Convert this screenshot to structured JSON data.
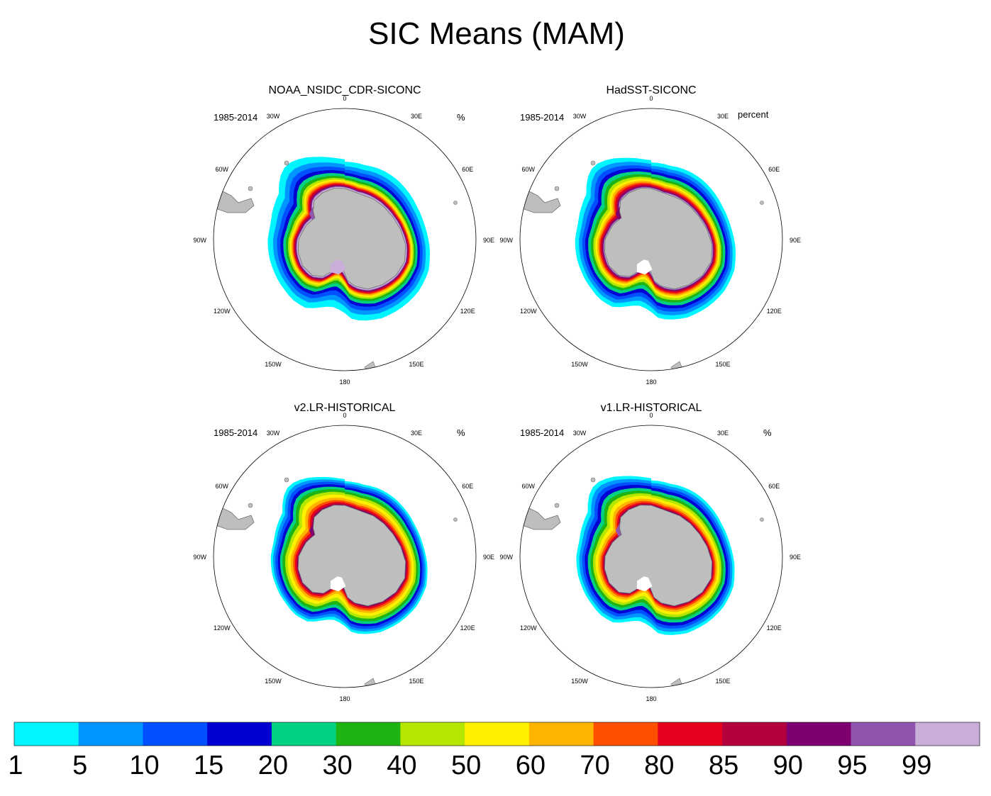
{
  "figure": {
    "title": "SIC Means (MAM)"
  },
  "panels": [
    {
      "title": "NOAA_NSIDC_CDR-SICONC",
      "period": "1985-2014",
      "units": "%",
      "ice_profile": [
        2.4,
        1.8,
        1.6,
        1.3,
        1.2,
        1.0,
        0.8,
        0.7,
        0.6,
        0.5,
        0.45,
        0.4,
        0.35,
        0.3,
        0.28,
        0.26
      ],
      "extent_scale": 1.0,
      "embayment_fill": {
        "weddell": "#9155b0",
        "ross": "#c8aed8"
      }
    },
    {
      "title": "HadSST-SICONC",
      "period": "1985-2014",
      "units": "percent",
      "ice_profile": [
        1.6,
        1.4,
        1.3,
        1.2,
        1.2,
        1.0,
        0.9,
        0.8,
        0.7,
        0.6,
        0.5,
        0.45,
        0.35,
        0.3,
        0.2,
        0.0
      ],
      "extent_scale": 0.97,
      "embayment_fill": {
        "weddell": "#7e0070",
        "ross": "#ffffff"
      }
    },
    {
      "title": "v2.LR-HISTORICAL",
      "period": "1985-2014",
      "units": "%",
      "ice_profile": [
        1.2,
        1.2,
        1.3,
        1.2,
        1.3,
        1.4,
        1.4,
        1.6,
        1.3,
        1.0,
        0.8,
        0.5,
        0.3,
        0.0,
        0.0,
        0.0
      ],
      "extent_scale": 0.9,
      "embayment_fill": {
        "weddell": "#7e0070",
        "ross": "#ffffff"
      }
    },
    {
      "title": "v1.LR-HISTORICAL",
      "period": "1985-2014",
      "units": "%",
      "ice_profile": [
        1.6,
        1.6,
        1.5,
        1.6,
        1.5,
        1.4,
        1.4,
        1.5,
        1.2,
        1.0,
        0.7,
        0.4,
        0.2,
        0.0,
        0.0,
        0.0
      ],
      "extent_scale": 0.93,
      "embayment_fill": {
        "weddell": "#9155b0",
        "ross": "#ffffff"
      }
    }
  ],
  "map_labels": {
    "n": "0",
    "ne30": "30E",
    "ne60": "60E",
    "e90": "90E",
    "e120": "120E",
    "e150": "150E",
    "s180": "180",
    "w150": "150W",
    "w120": "120W",
    "w90": "90W",
    "w60": "60W",
    "w30": "30W"
  },
  "colorbar": {
    "labels": [
      "1",
      "5",
      "10",
      "15",
      "20",
      "30",
      "40",
      "50",
      "60",
      "70",
      "80",
      "85",
      "90",
      "95",
      "99"
    ],
    "colors": [
      "#00f5ff",
      "#0096ff",
      "#0050ff",
      "#0000d2",
      "#00d282",
      "#1eb414",
      "#b4e600",
      "#fff000",
      "#ffb400",
      "#ff5000",
      "#e6001e",
      "#b4003c",
      "#7e0070",
      "#9155b0",
      "#c8aed8"
    ]
  },
  "colors": {
    "land": "#bebebe",
    "coast": "#707070"
  }
}
